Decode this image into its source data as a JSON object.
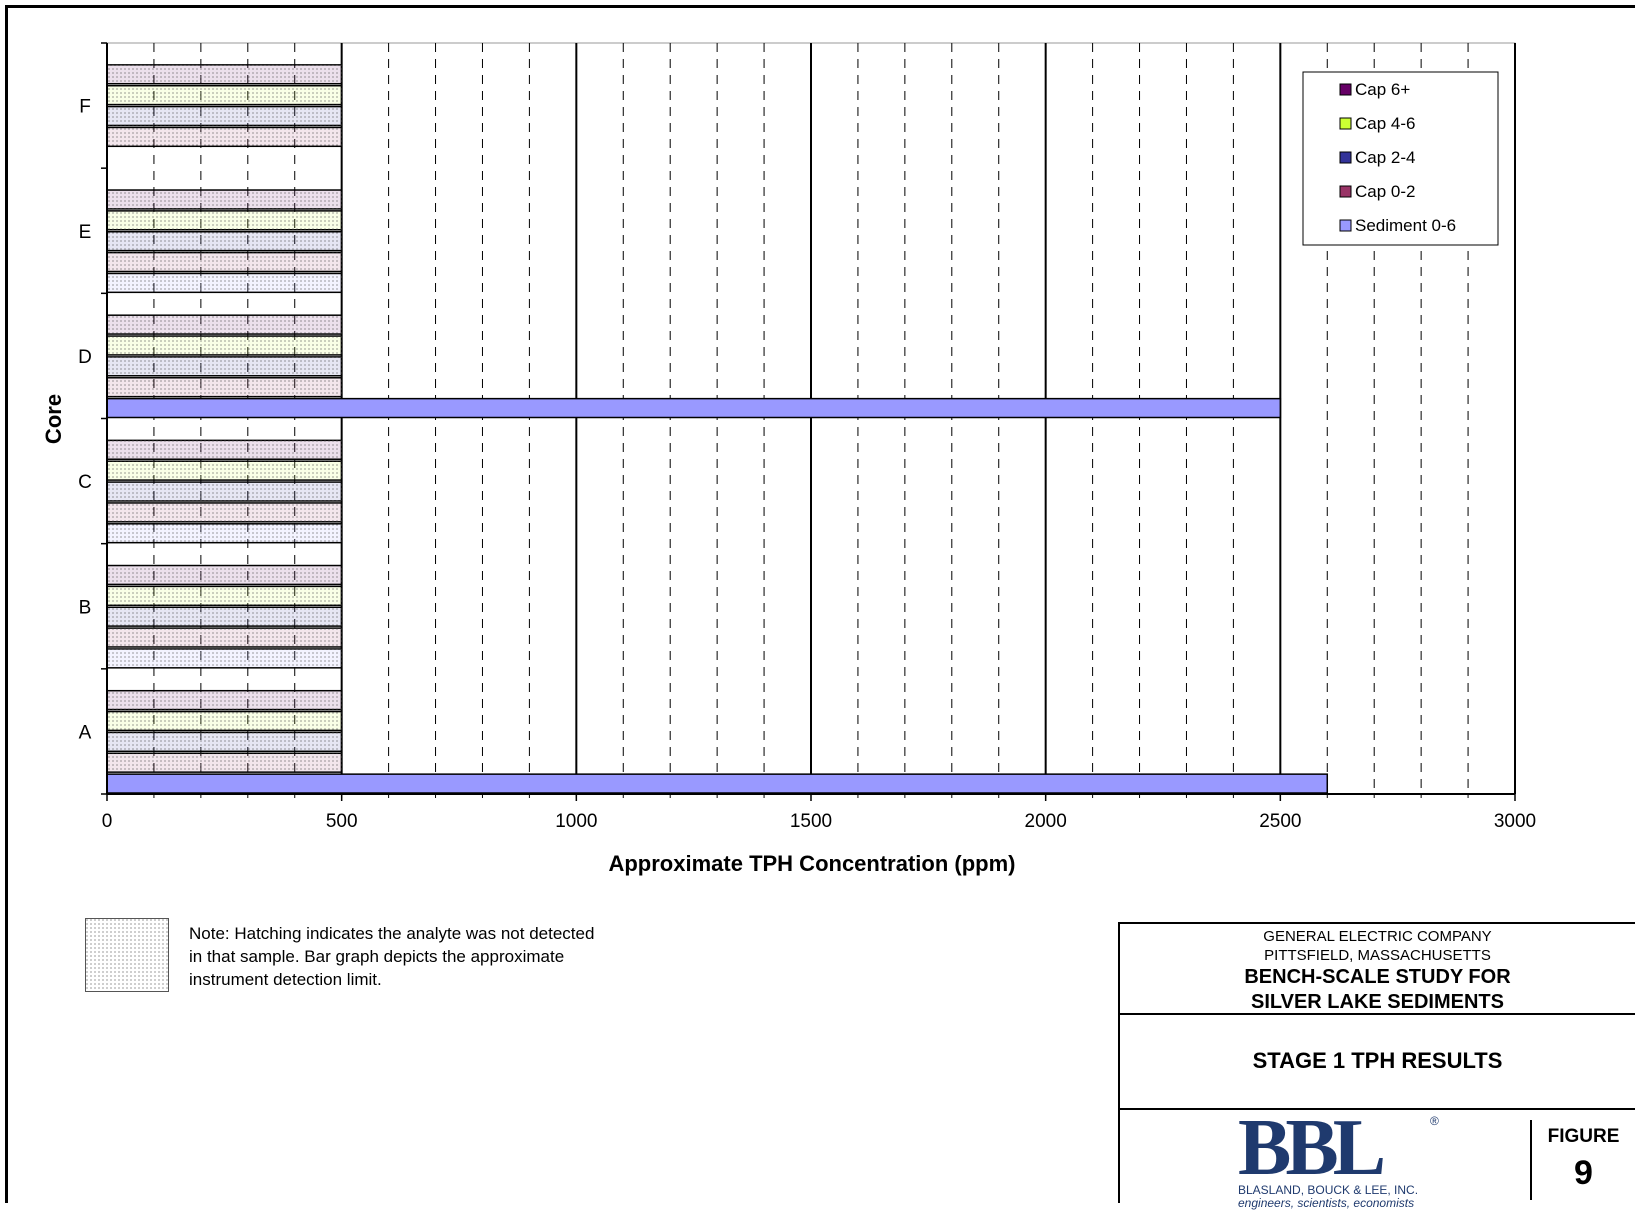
{
  "chart_data": {
    "type": "bar",
    "orientation": "horizontal",
    "categories": [
      "A",
      "B",
      "C",
      "D",
      "E",
      "F"
    ],
    "series": [
      {
        "name": "Sediment 0-6",
        "color": "#9999ff",
        "values": [
          2600,
          500,
          500,
          2500,
          500,
          0
        ],
        "not_detected": [
          false,
          true,
          true,
          false,
          true,
          false
        ]
      },
      {
        "name": "Cap 0-2",
        "color": "#993366",
        "values": [
          500,
          500,
          500,
          500,
          500,
          500
        ],
        "not_detected": [
          true,
          true,
          true,
          true,
          true,
          true
        ]
      },
      {
        "name": "Cap 2-4",
        "color": "#333399",
        "values": [
          500,
          500,
          500,
          500,
          500,
          500
        ],
        "not_detected": [
          true,
          true,
          true,
          true,
          true,
          true
        ]
      },
      {
        "name": "Cap 4-6",
        "color": "#ccff33",
        "values": [
          500,
          500,
          500,
          500,
          500,
          500
        ],
        "not_detected": [
          true,
          true,
          true,
          true,
          true,
          true
        ]
      },
      {
        "name": "Cap 6+",
        "color": "#660066",
        "values": [
          500,
          500,
          500,
          500,
          500,
          500
        ],
        "not_detected": [
          true,
          true,
          true,
          true,
          true,
          true
        ]
      },
      {
        "name": "",
        "color": "#ffffff",
        "values": [
          0,
          0,
          0,
          0,
          0,
          0
        ],
        "not_detected": [
          false,
          false,
          false,
          false,
          false,
          false
        ]
      }
    ],
    "xlabel": "Approximate TPH Concentration (ppm)",
    "ylabel": "Core",
    "xlim": [
      0,
      3000
    ],
    "x_ticks": [
      0,
      500,
      1000,
      1500,
      2000,
      2500,
      3000
    ],
    "legend_placement": "top-right",
    "grid": "vertical major solid, minor dashed"
  },
  "legend_order": [
    "Cap 6+",
    "Cap 4-6",
    "Cap 2-4",
    "Cap 0-2",
    "Sediment 0-6"
  ],
  "note": {
    "line1": "Note:  Hatching indicates the analyte was not detected",
    "line2": "in that sample.  Bar graph depicts the approximate",
    "line3": "instrument detection limit."
  },
  "title_block": {
    "company": "GENERAL ELECTRIC COMPANY",
    "location": "PITTSFIELD, MASSACHUSETTS",
    "project_line1": "BENCH-SCALE STUDY FOR",
    "project_line2": "SILVER LAKE SEDIMENTS",
    "drawing_title": "STAGE 1 TPH RESULTS",
    "logo_letters": "BBL",
    "logo_reg": "®",
    "firm_name": "BLASLAND, BOUCK & LEE, INC.",
    "firm_tagline": "engineers, scientists, economists",
    "figure_label": "FIGURE",
    "figure_number": "9"
  }
}
